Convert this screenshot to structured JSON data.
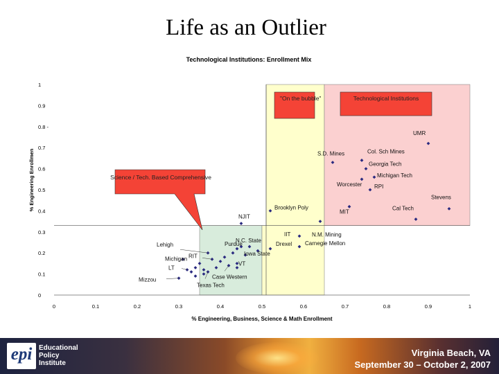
{
  "slide": {
    "title": "Life as an Outlier"
  },
  "chart_data": {
    "type": "scatter",
    "title": "Technological Institutions: Enrollment Mix",
    "xlabel": "% Engineering, Business, Science & Math Enrollment",
    "ylabel": "% Engineering Enrollmen",
    "xlim": [
      0,
      1
    ],
    "ylim": [
      0,
      1
    ],
    "x_ticks": [
      "0",
      "0.1",
      "0.2",
      "0.3",
      "0.4",
      "0.5",
      "0.6",
      "0.7",
      "0.8",
      "0.9",
      "1"
    ],
    "y_ticks": [
      "0",
      "0.1",
      "0.2",
      "0.3",
      "0.4",
      "0.5",
      "0.6",
      "0.7",
      "0.8 -",
      "0.9",
      "1"
    ],
    "regions": [
      {
        "name": "science-tech-region",
        "x0": 0.35,
        "x1": 0.5,
        "y0": 0,
        "y1": 0.33,
        "color": "#d8ecdc"
      },
      {
        "name": "bubble-region",
        "x0": 0.5,
        "x1": 0.65,
        "y0": 0,
        "y1": 0.33,
        "color": "#ffffcc"
      },
      {
        "name": "bubble-region-upper",
        "x0": 0.51,
        "x1": 0.65,
        "y0": 0.33,
        "y1": 1,
        "color": "#ffffcc"
      },
      {
        "name": "tech-institutions-region",
        "x0": 0.65,
        "x1": 1.0,
        "y0": 0.33,
        "y1": 1,
        "color": "#fbd0d0"
      }
    ],
    "ref_lines": {
      "vertical_x": 0.51,
      "horizontal_y": 0.33
    },
    "callouts": [
      {
        "name": "on-the-bubble-callout",
        "text": "\"On the bubble\""
      },
      {
        "name": "technological-institutions-callout",
        "text": "Technological Institutions"
      },
      {
        "name": "science-tech-callout",
        "text": "Science / Tech. Based Comprehensive"
      }
    ],
    "points": [
      {
        "label": "UMR",
        "x": 0.9,
        "y": 0.72
      },
      {
        "label": "S.D. Mines",
        "x": 0.67,
        "y": 0.63
      },
      {
        "label": "Col. Sch Mines",
        "x": 0.74,
        "y": 0.64
      },
      {
        "label": "Georgia Tech",
        "x": 0.75,
        "y": 0.6
      },
      {
        "label": "Michigan Tech",
        "x": 0.77,
        "y": 0.56
      },
      {
        "label": "Worcester",
        "x": 0.74,
        "y": 0.55
      },
      {
        "label": "RPI",
        "x": 0.76,
        "y": 0.5
      },
      {
        "label": "Stevens",
        "x": 0.95,
        "y": 0.41
      },
      {
        "label": "Cal Tech",
        "x": 0.87,
        "y": 0.36
      },
      {
        "label": "MIT",
        "x": 0.71,
        "y": 0.42
      },
      {
        "label": "N.M. Mining",
        "x": 0.64,
        "y": 0.35
      },
      {
        "label": "Brooklyn Poly",
        "x": 0.52,
        "y": 0.4
      },
      {
        "label": "NJIT",
        "x": 0.45,
        "y": 0.34
      },
      {
        "label": "IIT",
        "x": 0.59,
        "y": 0.28
      },
      {
        "label": "Carnegie Mellon",
        "x": 0.59,
        "y": 0.23
      },
      {
        "label": "Drexel",
        "x": 0.52,
        "y": 0.22
      },
      {
        "label": "N.C. State",
        "x": 0.47,
        "y": 0.23
      },
      {
        "label": "Iowa State",
        "x": 0.49,
        "y": 0.21
      },
      {
        "label": "Purdue",
        "x": 0.44,
        "y": 0.22
      },
      {
        "label": "VT",
        "x": 0.44,
        "y": 0.15
      },
      {
        "label": "Case Western",
        "x": 0.42,
        "y": 0.14
      },
      {
        "label": "RIT",
        "x": 0.38,
        "y": 0.17
      },
      {
        "label": "Lehigh",
        "x": 0.37,
        "y": 0.2
      },
      {
        "label": "Michigan",
        "x": 0.31,
        "y": 0.17
      },
      {
        "label": "LT",
        "x": 0.32,
        "y": 0.12
      },
      {
        "label": "Texas Tech",
        "x": 0.37,
        "y": 0.11
      },
      {
        "label": "Mizzou",
        "x": 0.3,
        "y": 0.08
      },
      {
        "label": "",
        "x": 0.34,
        "y": 0.13
      },
      {
        "label": "",
        "x": 0.35,
        "y": 0.15
      },
      {
        "label": "",
        "x": 0.36,
        "y": 0.1
      },
      {
        "label": "",
        "x": 0.34,
        "y": 0.09
      },
      {
        "label": "",
        "x": 0.33,
        "y": 0.11
      },
      {
        "label": "",
        "x": 0.39,
        "y": 0.13
      },
      {
        "label": "",
        "x": 0.41,
        "y": 0.18
      },
      {
        "label": "",
        "x": 0.43,
        "y": 0.2
      },
      {
        "label": "",
        "x": 0.46,
        "y": 0.19
      },
      {
        "label": "",
        "x": 0.44,
        "y": 0.13
      },
      {
        "label": "",
        "x": 0.45,
        "y": 0.23
      },
      {
        "label": "",
        "x": 0.4,
        "y": 0.16
      },
      {
        "label": "",
        "x": 0.36,
        "y": 0.12
      }
    ]
  },
  "footer": {
    "org_line1": "Educational",
    "org_line2": "Policy",
    "org_line3": "Institute",
    "logo_text": "epi",
    "location": "Virginia Beach, VA",
    "dates": "September 30 – October 2, 2007"
  }
}
